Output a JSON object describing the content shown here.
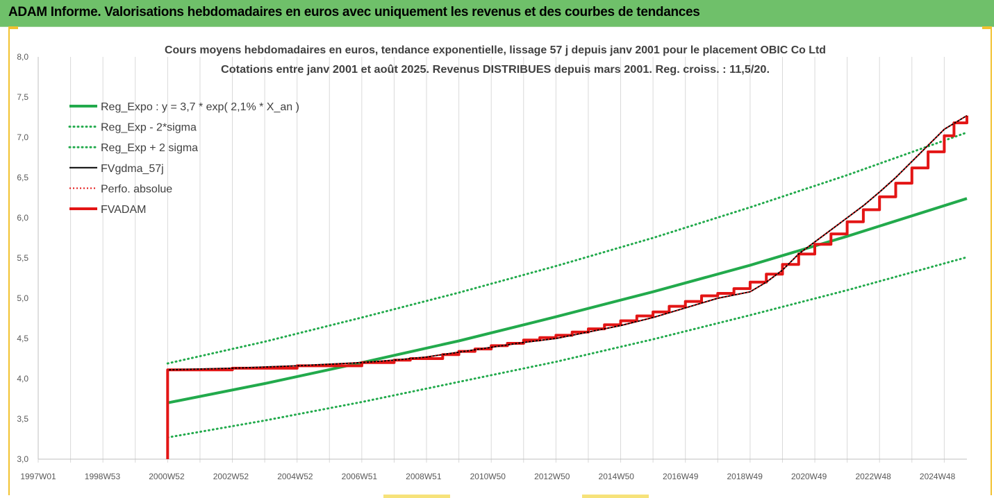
{
  "banner": {
    "title": "ADAM Informe. Valorisations hebdomadaires en euros avec uniquement les revenus et des courbes de tendances"
  },
  "chart_data": {
    "type": "line",
    "title": "Cours moyens hebdomadaires en euros, tendance exponentielle, lissage 57 j depuis janv 2001 pour le placement OBIC Co Ltd",
    "subtitle": "Cotations entre janv 2001 et août 2025. Revenus DISTRIBUES depuis mars 2001. Reg. croiss. : 11,5/20.",
    "xlabel": "",
    "ylabel": "",
    "x_ticks": [
      "1997W01",
      "1998W53",
      "2000W52",
      "2002W52",
      "2004W52",
      "2006W51",
      "2008W51",
      "2010W50",
      "2012W50",
      "2014W50",
      "2016W49",
      "2018W49",
      "2020W49",
      "2022W48",
      "2024W48"
    ],
    "y_ticks": [
      "3,0",
      "3,5",
      "4,0",
      "4,5",
      "5,0",
      "5,5",
      "6,0",
      "6,5",
      "7,0",
      "7,5",
      "8,0"
    ],
    "ylim": [
      3.0,
      8.0
    ],
    "xlim_years": [
      1997.0,
      2025.7
    ],
    "grid": "vertical",
    "legend_position": "top-left",
    "series": [
      {
        "name": "Reg_Expo : y = 3,7 * exp( 2,1% *  X_an )",
        "color": "#22aa4c",
        "style": "solid",
        "x": [
          2001.0,
          2004.0,
          2007.0,
          2010.0,
          2013.0,
          2016.0,
          2019.0,
          2022.0,
          2025.7
        ],
        "values": [
          3.7,
          3.94,
          4.2,
          4.47,
          4.77,
          5.08,
          5.41,
          5.77,
          6.24
        ]
      },
      {
        "name": "Reg_Exp - 2*sigma",
        "color": "#22aa4c",
        "style": "dotted",
        "x": [
          2001.0,
          2004.0,
          2007.0,
          2010.0,
          2013.0,
          2016.0,
          2019.0,
          2022.0,
          2025.7
        ],
        "values": [
          3.27,
          3.48,
          3.71,
          3.96,
          4.21,
          4.49,
          4.79,
          5.1,
          5.51
        ]
      },
      {
        "name": "Reg_Exp + 2 sigma",
        "color": "#22aa4c",
        "style": "dotted",
        "x": [
          2001.0,
          2004.0,
          2007.0,
          2010.0,
          2013.0,
          2016.0,
          2019.0,
          2022.0,
          2025.7
        ],
        "values": [
          4.19,
          4.46,
          4.76,
          5.07,
          5.4,
          5.75,
          6.13,
          6.53,
          7.06
        ]
      },
      {
        "name": "FVgdma_57j",
        "color": "#000000",
        "style": "solid",
        "x": [
          2001.0,
          2003.0,
          2005.0,
          2007.0,
          2008.0,
          2009.0,
          2010.0,
          2011.0,
          2012.0,
          2013.0,
          2014.0,
          2015.0,
          2016.0,
          2017.0,
          2018.0,
          2019.0,
          2019.5,
          2020.0,
          2020.5,
          2021.0,
          2021.5,
          2022.0,
          2022.5,
          2023.0,
          2023.5,
          2024.0,
          2024.5,
          2025.0,
          2025.7
        ],
        "values": [
          4.11,
          4.13,
          4.16,
          4.2,
          4.23,
          4.27,
          4.33,
          4.39,
          4.45,
          4.5,
          4.58,
          4.66,
          4.76,
          4.88,
          5.0,
          5.08,
          5.2,
          5.35,
          5.55,
          5.7,
          5.85,
          6.0,
          6.15,
          6.32,
          6.5,
          6.7,
          6.9,
          7.1,
          7.27
        ]
      },
      {
        "name": "Perfo. absolue",
        "color": "#e31515",
        "style": "dotted",
        "x": [
          2001.0,
          2003.0,
          2005.0,
          2007.0,
          2008.0,
          2009.0,
          2010.0,
          2011.0,
          2012.0,
          2013.0,
          2014.0,
          2015.0,
          2016.0,
          2017.0,
          2018.0,
          2019.0,
          2019.5,
          2020.0,
          2020.5,
          2021.0,
          2021.5,
          2022.0,
          2022.5,
          2023.0,
          2023.5,
          2024.0,
          2024.5,
          2025.0,
          2025.7
        ],
        "values": [
          4.11,
          4.13,
          4.16,
          4.2,
          4.23,
          4.27,
          4.33,
          4.39,
          4.45,
          4.5,
          4.58,
          4.66,
          4.76,
          4.88,
          5.0,
          5.08,
          5.2,
          5.35,
          5.55,
          5.7,
          5.85,
          6.0,
          6.15,
          6.32,
          6.5,
          6.7,
          6.9,
          7.1,
          7.27
        ]
      },
      {
        "name": "FVADAM",
        "color": "#e31515",
        "style": "solid",
        "x": [
          2001.0,
          2001.0,
          2003.0,
          2005.0,
          2007.0,
          2008.0,
          2008.5,
          2009.5,
          2010.0,
          2010.5,
          2011.0,
          2011.5,
          2012.0,
          2012.5,
          2013.0,
          2013.5,
          2014.0,
          2014.5,
          2015.0,
          2015.5,
          2016.0,
          2016.5,
          2017.0,
          2017.5,
          2018.0,
          2018.5,
          2019.0,
          2019.5,
          2020.0,
          2020.5,
          2021.0,
          2021.5,
          2022.0,
          2022.5,
          2023.0,
          2023.5,
          2024.0,
          2024.5,
          2025.0,
          2025.3,
          2025.7
        ],
        "values": [
          3.0,
          4.11,
          4.13,
          4.16,
          4.2,
          4.23,
          4.25,
          4.3,
          4.34,
          4.37,
          4.41,
          4.44,
          4.48,
          4.51,
          4.54,
          4.58,
          4.62,
          4.67,
          4.72,
          4.78,
          4.83,
          4.9,
          4.96,
          5.03,
          5.06,
          5.12,
          5.2,
          5.3,
          5.42,
          5.55,
          5.67,
          5.8,
          5.95,
          6.1,
          6.26,
          6.43,
          6.62,
          6.82,
          7.02,
          7.18,
          7.27
        ]
      }
    ]
  }
}
